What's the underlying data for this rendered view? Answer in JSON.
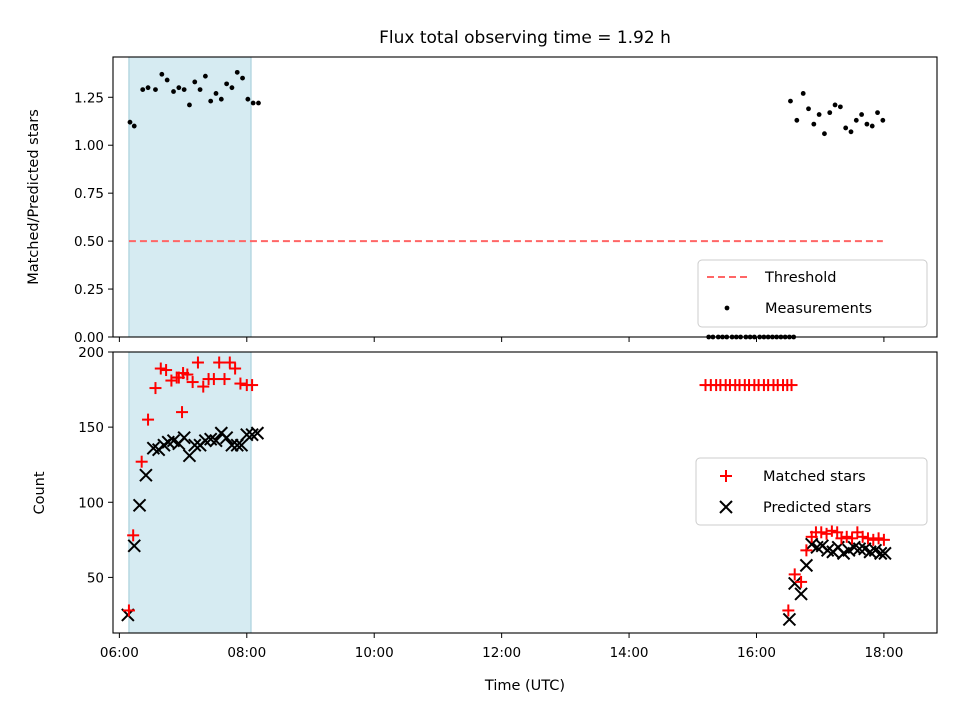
{
  "chart_data": [
    {
      "type": "scatter",
      "title": "Flux total observing time = 1.92 h",
      "ylabel": "Matched/Predicted stars",
      "xlim": [
        "05:54",
        "18:50"
      ],
      "ylim": [
        0.0,
        1.46
      ],
      "yticks": [
        "0.00",
        "0.25",
        "0.50",
        "0.75",
        "1.00",
        "1.25"
      ],
      "yticks_values": [
        0.0,
        0.25,
        0.5,
        0.75,
        1.0,
        1.25
      ],
      "shaded_span": {
        "from": "06:09",
        "to": "08:04",
        "color": "#add8e6"
      },
      "threshold": {
        "name": "Threshold",
        "value": 0.5,
        "from": "06:09",
        "to": "17:59",
        "color": "#ff6666"
      },
      "series": [
        {
          "name": "Measurements",
          "color": "#000000",
          "points": [
            [
              "06:10",
              1.12
            ],
            [
              "06:14",
              1.1
            ],
            [
              "06:22",
              1.29
            ],
            [
              "06:27",
              1.3
            ],
            [
              "06:34",
              1.29
            ],
            [
              "06:40",
              1.37
            ],
            [
              "06:45",
              1.34
            ],
            [
              "06:51",
              1.28
            ],
            [
              "06:56",
              1.3
            ],
            [
              "07:01",
              1.29
            ],
            [
              "07:06",
              1.21
            ],
            [
              "07:11",
              1.33
            ],
            [
              "07:16",
              1.29
            ],
            [
              "07:21",
              1.36
            ],
            [
              "07:26",
              1.23
            ],
            [
              "07:31",
              1.27
            ],
            [
              "07:36",
              1.24
            ],
            [
              "07:41",
              1.32
            ],
            [
              "07:46",
              1.3
            ],
            [
              "07:51",
              1.38
            ],
            [
              "07:56",
              1.35
            ],
            [
              "08:01",
              1.24
            ],
            [
              "08:06",
              1.22
            ],
            [
              "08:11",
              1.22
            ],
            [
              "15:15",
              0.0
            ],
            [
              "15:19",
              0.0
            ],
            [
              "15:24",
              0.0
            ],
            [
              "15:28",
              0.0
            ],
            [
              "15:32",
              0.0
            ],
            [
              "15:37",
              0.0
            ],
            [
              "15:41",
              0.0
            ],
            [
              "15:45",
              0.0
            ],
            [
              "15:50",
              0.0
            ],
            [
              "15:54",
              0.0
            ],
            [
              "15:58",
              0.0
            ],
            [
              "16:03",
              0.0
            ],
            [
              "16:07",
              0.0
            ],
            [
              "16:11",
              0.0
            ],
            [
              "16:15",
              0.0
            ],
            [
              "16:19",
              0.0
            ],
            [
              "16:23",
              0.0
            ],
            [
              "16:27",
              0.0
            ],
            [
              "16:31",
              0.0
            ],
            [
              "16:35",
              0.0
            ],
            [
              "16:32",
              1.23
            ],
            [
              "16:38",
              1.13
            ],
            [
              "16:44",
              1.27
            ],
            [
              "16:49",
              1.19
            ],
            [
              "16:54",
              1.11
            ],
            [
              "16:59",
              1.16
            ],
            [
              "17:04",
              1.06
            ],
            [
              "17:09",
              1.17
            ],
            [
              "17:14",
              1.21
            ],
            [
              "17:19",
              1.2
            ],
            [
              "17:24",
              1.09
            ],
            [
              "17:29",
              1.07
            ],
            [
              "17:34",
              1.13
            ],
            [
              "17:39",
              1.16
            ],
            [
              "17:44",
              1.11
            ],
            [
              "17:49",
              1.1
            ],
            [
              "17:54",
              1.17
            ],
            [
              "17:59",
              1.13
            ]
          ]
        }
      ],
      "legend": {
        "entries": [
          "Threshold",
          "Measurements"
        ],
        "placement": "lower-right"
      }
    },
    {
      "type": "scatter",
      "xlabel": "Time (UTC)",
      "ylabel": "Count",
      "xlim": [
        "05:54",
        "18:50"
      ],
      "ylim": [
        13,
        200
      ],
      "yticks": [
        "50",
        "100",
        "150",
        "200"
      ],
      "yticks_values": [
        50,
        100,
        150,
        200
      ],
      "xticks": [
        "06:00",
        "08:00",
        "10:00",
        "12:00",
        "14:00",
        "16:00",
        "18:00"
      ],
      "xticks_values": [
        360,
        480,
        600,
        720,
        840,
        960,
        1080
      ],
      "shaded_span": {
        "from": "06:09",
        "to": "08:04",
        "color": "#add8e6"
      },
      "series": [
        {
          "name": "Matched stars",
          "marker": "+",
          "color": "#ff0000",
          "points": [
            [
              "06:09",
              28
            ],
            [
              "06:13",
              78
            ],
            [
              "06:21",
              127
            ],
            [
              "06:27",
              155
            ],
            [
              "06:34",
              176
            ],
            [
              "06:39",
              189
            ],
            [
              "06:44",
              188
            ],
            [
              "06:49",
              181
            ],
            [
              "06:54",
              183
            ],
            [
              "07:00",
              186
            ],
            [
              "06:56",
              183
            ],
            [
              "06:59",
              160
            ],
            [
              "07:04",
              185
            ],
            [
              "07:09",
              180
            ],
            [
              "07:14",
              193
            ],
            [
              "07:19",
              177
            ],
            [
              "07:24",
              182
            ],
            [
              "07:29",
              182
            ],
            [
              "07:34",
              193
            ],
            [
              "07:39",
              182
            ],
            [
              "07:44",
              193
            ],
            [
              "07:49",
              189
            ],
            [
              "07:54",
              179
            ],
            [
              "08:00",
              178
            ],
            [
              "08:05",
              178
            ],
            [
              "15:12",
              178
            ],
            [
              "15:17",
              178
            ],
            [
              "15:22",
              178
            ],
            [
              "15:26",
              178
            ],
            [
              "15:31",
              178
            ],
            [
              "15:35",
              178
            ],
            [
              "15:40",
              178
            ],
            [
              "15:44",
              178
            ],
            [
              "15:49",
              178
            ],
            [
              "15:53",
              178
            ],
            [
              "15:58",
              178
            ],
            [
              "16:02",
              178
            ],
            [
              "16:07",
              178
            ],
            [
              "16:11",
              178
            ],
            [
              "16:16",
              178
            ],
            [
              "16:20",
              178
            ],
            [
              "16:25",
              178
            ],
            [
              "16:29",
              178
            ],
            [
              "16:33",
              178
            ],
            [
              "16:30",
              28
            ],
            [
              "16:36",
              52
            ],
            [
              "16:42",
              47
            ],
            [
              "16:47",
              68
            ],
            [
              "16:52",
              77
            ],
            [
              "16:56",
              80
            ],
            [
              "17:01",
              80
            ],
            [
              "17:06",
              79
            ],
            [
              "17:11",
              81
            ],
            [
              "17:16",
              80
            ],
            [
              "17:20",
              76
            ],
            [
              "17:25",
              77
            ],
            [
              "17:30",
              76
            ],
            [
              "17:35",
              80
            ],
            [
              "17:40",
              77
            ],
            [
              "17:45",
              76
            ],
            [
              "17:50",
              75
            ],
            [
              "17:55",
              76
            ],
            [
              "18:00",
              75
            ]
          ]
        },
        {
          "name": "Predicted stars",
          "marker": "x",
          "color": "#000000",
          "points": [
            [
              "06:08",
              25
            ],
            [
              "06:14",
              71
            ],
            [
              "06:19",
              98
            ],
            [
              "06:25",
              118
            ],
            [
              "06:32",
              136
            ],
            [
              "06:37",
              135
            ],
            [
              "06:42",
              138
            ],
            [
              "06:46",
              140
            ],
            [
              "06:51",
              141
            ],
            [
              "06:56",
              139
            ],
            [
              "07:01",
              143
            ],
            [
              "07:06",
              131
            ],
            [
              "07:11",
              138
            ],
            [
              "07:16",
              138
            ],
            [
              "07:21",
              141
            ],
            [
              "07:26",
              142
            ],
            [
              "07:31",
              141
            ],
            [
              "07:36",
              146
            ],
            [
              "07:41",
              143
            ],
            [
              "07:46",
              138
            ],
            [
              "07:51",
              138
            ],
            [
              "07:55",
              138
            ],
            [
              "08:00",
              145
            ],
            [
              "08:05",
              145
            ],
            [
              "08:10",
              146
            ],
            [
              "16:31",
              22
            ],
            [
              "16:36",
              46
            ],
            [
              "16:42",
              39
            ],
            [
              "16:47",
              58
            ],
            [
              "16:52",
              72
            ],
            [
              "16:57",
              70
            ],
            [
              "17:02",
              71
            ],
            [
              "17:07",
              68
            ],
            [
              "17:12",
              67
            ],
            [
              "17:17",
              70
            ],
            [
              "17:22",
              66
            ],
            [
              "17:27",
              68
            ],
            [
              "17:32",
              70
            ],
            [
              "17:37",
              69
            ],
            [
              "17:42",
              69
            ],
            [
              "17:47",
              67
            ],
            [
              "17:52",
              68
            ],
            [
              "17:57",
              66
            ],
            [
              "18:01",
              66
            ]
          ]
        }
      ],
      "legend": {
        "entries": [
          "Matched stars",
          "Predicted stars"
        ],
        "placement": "center-right"
      }
    }
  ]
}
